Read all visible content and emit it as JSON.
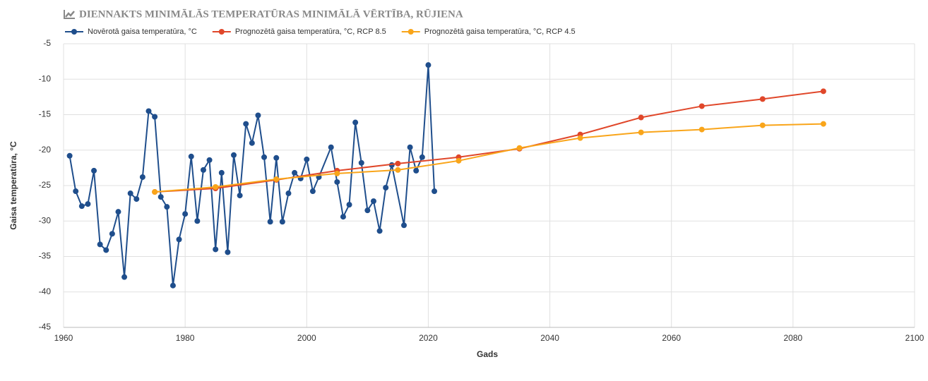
{
  "chart_data": {
    "type": "line",
    "title": "DIENNAKTS MINIMĀLĀS TEMPERATŪRAS MINIMĀLĀ VĒRTĪBA, RŪJIENA",
    "x_label": "Gads",
    "y_label": "Gaisa temperatūra, °C",
    "xlim": [
      1960,
      2100
    ],
    "xticks": [
      1960,
      1980,
      2000,
      2020,
      2040,
      2060,
      2080,
      2100
    ],
    "ylim": [
      -45,
      -5
    ],
    "yticks": [
      -45,
      -40,
      -35,
      -30,
      -25,
      -20,
      -15,
      -10,
      -5
    ],
    "grid": true,
    "legend": "top-left",
    "series": [
      {
        "name": "Novērotā gaisa temperatūra, °C",
        "color": "#1f4e8c",
        "x": [
          1961,
          1962,
          1963,
          1964,
          1965,
          1966,
          1967,
          1968,
          1969,
          1970,
          1971,
          1972,
          1973,
          1974,
          1975,
          1976,
          1977,
          1978,
          1979,
          1980,
          1981,
          1982,
          1983,
          1984,
          1985,
          1986,
          1987,
          1988,
          1989,
          1990,
          1991,
          1992,
          1993,
          1994,
          1995,
          1996,
          1997,
          1998,
          1999,
          2000,
          2001,
          2002,
          2004,
          2005,
          2006,
          2007,
          2008,
          2009,
          2010,
          2011,
          2012,
          2013,
          2014,
          2016,
          2017,
          2018,
          2019,
          2020,
          2021
        ],
        "values": [
          -20.8,
          -25.8,
          -27.9,
          -27.6,
          -22.9,
          -33.3,
          -34.1,
          -31.8,
          -28.7,
          -37.9,
          -26.1,
          -26.9,
          -23.8,
          -14.5,
          -15.3,
          -26.6,
          -28,
          -39.1,
          -32.6,
          -29,
          -20.9,
          -30,
          -22.8,
          -21.4,
          -34,
          -23.2,
          -34.4,
          -20.7,
          -26.4,
          -16.3,
          -19,
          -15.1,
          -21,
          -30.1,
          -21.1,
          -30.1,
          -26.1,
          -23.2,
          -24,
          -21.3,
          -25.8,
          -23.8,
          -19.6,
          -24.5,
          -29.4,
          -27.7,
          -16.1,
          -21.8,
          -28.5,
          -27.2,
          -31.4,
          -25.3,
          -22.1,
          -30.6,
          -19.6,
          -22.9,
          -21,
          -8,
          -25.8
        ]
      },
      {
        "name": "Prognozētā gaisa temperatūra, °C, RCP 8.5",
        "color": "#e0472a",
        "x": [
          1975,
          1985,
          1995,
          2005,
          2015,
          2025,
          2035,
          2045,
          2055,
          2065,
          2075,
          2085
        ],
        "values": [
          -25.9,
          -25.4,
          -24.2,
          -22.9,
          -21.9,
          -21,
          -19.8,
          -17.8,
          -15.4,
          -13.8,
          -12.8,
          -11.7
        ]
      },
      {
        "name": "Prognozētā gaisa temperatūra, °C, RCP 4.5",
        "color": "#f9a51a",
        "x": [
          1975,
          1985,
          1995,
          2005,
          2015,
          2025,
          2035,
          2045,
          2055,
          2065,
          2075,
          2085
        ],
        "values": [
          -25.9,
          -25.2,
          -24.1,
          -23.3,
          -22.8,
          -21.5,
          -19.7,
          -18.3,
          -17.5,
          -17.1,
          -16.5,
          -16.3
        ]
      }
    ]
  }
}
